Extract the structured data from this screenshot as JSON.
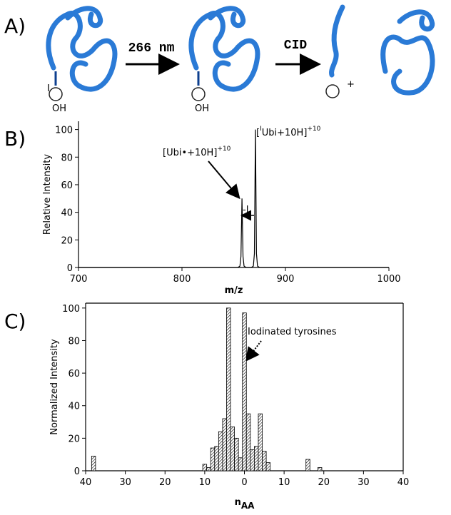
{
  "scheme": {
    "panel_label": "A)",
    "step1": "266 nm",
    "step2": "CID",
    "plus": "+",
    "iodine": "I",
    "hydroxyl": "OH"
  },
  "chart_data": [
    {
      "type": "line",
      "panel_label": "B)",
      "xlabel": "m/z",
      "ylabel": "Relative Intensity",
      "color": "#000000",
      "x": [
        700,
        854,
        856,
        857,
        858,
        859,
        860,
        862,
        867,
        869,
        870,
        871,
        872,
        873,
        875,
        1000
      ],
      "values": [
        0,
        0,
        1,
        8,
        50,
        8,
        1,
        0,
        0,
        1,
        10,
        100,
        10,
        1,
        0,
        0
      ],
      "xlim": [
        700,
        1000
      ],
      "xticks": [
        700,
        800,
        900,
        1000
      ],
      "ylim": [
        0,
        106
      ],
      "yticks": [
        0,
        20,
        40,
        60,
        80,
        100
      ],
      "annotations": [
        {
          "text": "[Ubi•+10H]",
          "superscript": "+10"
        },
        {
          "prefix": "[",
          "prefix_superscript": "I",
          "text": "Ubi+10H]",
          "superscript": "+10"
        },
        {
          "text": "-I"
        }
      ]
    },
    {
      "type": "bar",
      "panel_label": "C)",
      "xlabel": {
        "text": "n",
        "subscript": "AA"
      },
      "ylabel": "Normalized Intensity",
      "x": [
        -38,
        -10,
        -9,
        -8,
        -7,
        -6,
        -5,
        -4,
        -3,
        -2,
        -1,
        0,
        1,
        2,
        3,
        4,
        5,
        6,
        16,
        19
      ],
      "values": [
        9,
        4,
        2,
        14,
        15,
        24,
        32,
        100,
        27,
        20,
        8,
        97,
        35,
        13,
        15,
        35,
        12,
        5,
        7,
        2
      ],
      "xlim": [
        -40,
        40
      ],
      "xticks": [
        {
          "value": -40,
          "label": "40"
        },
        {
          "value": -30,
          "label": "30"
        },
        {
          "value": -20,
          "label": "20"
        },
        {
          "value": -10,
          "label": "10"
        },
        0,
        10,
        20,
        30,
        40
      ],
      "ylim": [
        0,
        103
      ],
      "yticks": [
        0,
        20,
        40,
        60,
        80,
        100
      ],
      "annotations": [
        {
          "text": "Iodinated tyrosines"
        }
      ]
    }
  ]
}
